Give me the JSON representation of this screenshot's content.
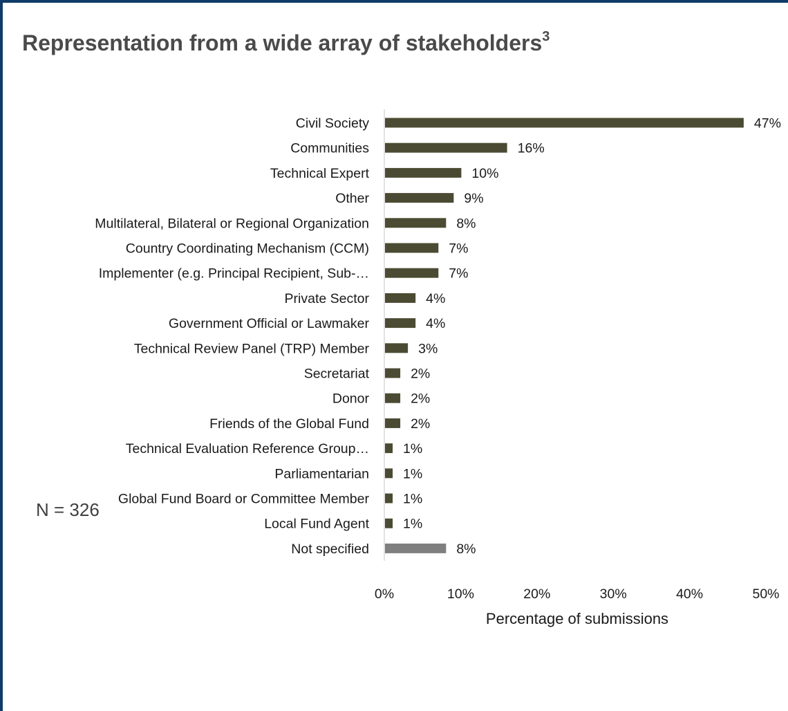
{
  "title": "Representation from a wide array of stakeholders",
  "title_sup": "3",
  "note": "N = 326",
  "chart_data": {
    "type": "bar",
    "orientation": "horizontal",
    "categories": [
      "Civil Society",
      "Communities",
      "Technical Expert",
      "Other",
      "Multilateral, Bilateral or Regional Organization",
      "Country Coordinating Mechanism (CCM)",
      "Implementer (e.g. Principal Recipient, Sub-…",
      "Private Sector",
      "Government Official or Lawmaker",
      "Technical Review Panel (TRP) Member",
      "Secretariat",
      "Donor",
      "Friends of the Global Fund",
      "Technical Evaluation Reference Group…",
      "Parliamentarian",
      "Global Fund Board or Committee Member",
      "Local Fund Agent",
      "Not specified"
    ],
    "values": [
      47,
      16,
      10,
      9,
      8,
      7,
      7,
      4,
      4,
      3,
      2,
      2,
      2,
      1,
      1,
      1,
      1,
      8
    ],
    "data_labels": [
      "47%",
      "16%",
      "10%",
      "9%",
      "8%",
      "7%",
      "7%",
      "4%",
      "4%",
      "3%",
      "2%",
      "2%",
      "2%",
      "1%",
      "1%",
      "1%",
      "1%",
      "8%"
    ],
    "xlabel": "Percentage of submissions",
    "ylabel": "",
    "xlim": [
      0,
      50
    ],
    "xticks": [
      "0%",
      "10%",
      "20%",
      "30%",
      "40%",
      "50%"
    ],
    "grid": false,
    "colors": {
      "bar": "#4b4b33",
      "bar_not_specified": "#7f7f7f",
      "axis": "#d9d9d9",
      "text": "#1a1a1a",
      "frame": "#0f3c68"
    }
  }
}
